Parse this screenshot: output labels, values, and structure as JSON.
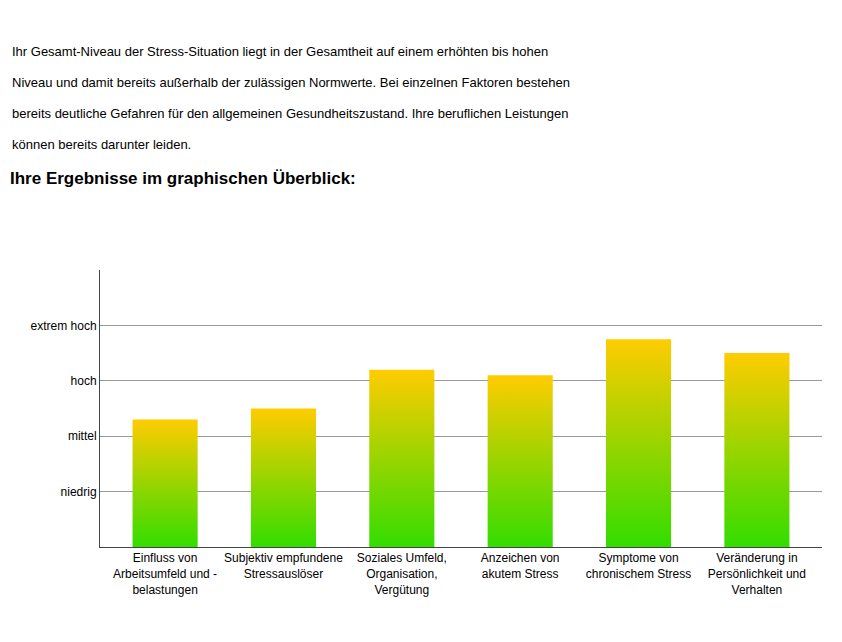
{
  "chart_data": {
    "type": "bar",
    "title": "Ihre Ergebnisse im graphischen Überblick:",
    "subtitle": [
      "Ihr Gesamt-Niveau der Stress-Situation liegt in der Gesamtheit auf einem erhöhten bis hohen",
      "Niveau und damit bereits außerhalb der zulässigen Normwerte. Bei einzelnen Faktoren bestehen",
      "bereits deutliche Gefahren für den allgemeinen Gesundheitszustand. Ihre beruflichen Leistungen",
      "können bereits darunter leiden."
    ],
    "categories": [
      "Einfluss von\nArbeitsumfeld und -\nbelastungen",
      "Subjektiv empfundene\nStressauslöser",
      "Soziales Umfeld,\nOrganisation,\nVergütung",
      "Anzeichen von\nakutem Stress",
      "Symptome von\nchronischem Stress",
      "Veränderung in\nPersönlichkeit und\nVerhalten"
    ],
    "values": [
      2.3,
      2.5,
      3.2,
      3.1,
      3.75,
      3.5
    ],
    "color": [
      "#33dd00",
      "#ffcc00"
    ],
    "ylim": [
      0,
      5
    ],
    "yticks": [
      {
        "value": 1,
        "label": "niedrig"
      },
      {
        "value": 2,
        "label": "mittel"
      },
      {
        "value": 3,
        "label": "hoch"
      },
      {
        "value": 4,
        "label": "extrem hoch"
      }
    ],
    "grid": true
  }
}
